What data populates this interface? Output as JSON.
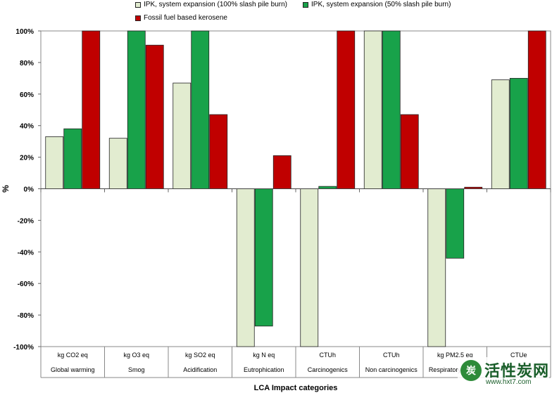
{
  "chart_data": {
    "type": "bar",
    "xlabel": "LCA Impact categories",
    "ylabel": "%",
    "ylim": [
      -100,
      100
    ],
    "yticks": [
      100,
      80,
      60,
      40,
      20,
      0,
      -20,
      -40,
      -60,
      -80,
      -100
    ],
    "ytick_labels": [
      "100%",
      "80%",
      "60%",
      "40%",
      "20%",
      "0%",
      "-20%",
      "-40%",
      "-60%",
      "-80%",
      "-100%"
    ],
    "grid": false,
    "legend_position": "top",
    "categories": [
      {
        "unit": "kg CO2 eq",
        "name": "Global warming"
      },
      {
        "unit": "kg O3 eq",
        "name": "Smog"
      },
      {
        "unit": "kg SO2 eq",
        "name": "Acidification"
      },
      {
        "unit": "kg N eq",
        "name": "Eutrophication"
      },
      {
        "unit": "CTUh",
        "name": "Carcinogenics"
      },
      {
        "unit": "CTUh",
        "name": "Non carcinogenics"
      },
      {
        "unit": "kg PM2.5 eq",
        "name": "Respiratory effects"
      },
      {
        "unit": "CTUe",
        "name": "Ecotoxicity"
      }
    ],
    "series": [
      {
        "name": "IPK, system expansion (100% slash pile burn)",
        "color": "#e2ecd0",
        "values": [
          33,
          32,
          67,
          -100,
          -100,
          100,
          -100,
          69
        ]
      },
      {
        "name": "IPK, system expansion (50% slash pile burn)",
        "color": "#18a24a",
        "values": [
          38,
          100,
          100,
          -87,
          1.5,
          100,
          -44,
          70
        ]
      },
      {
        "name": "Fossil fuel based kerosene",
        "color": "#c00000",
        "values": [
          100,
          91,
          47,
          21,
          100,
          47,
          1,
          100
        ]
      }
    ]
  },
  "watermark": {
    "brand": "活性炭网",
    "url": "www.hxt7.com",
    "logo_text": "炭"
  }
}
